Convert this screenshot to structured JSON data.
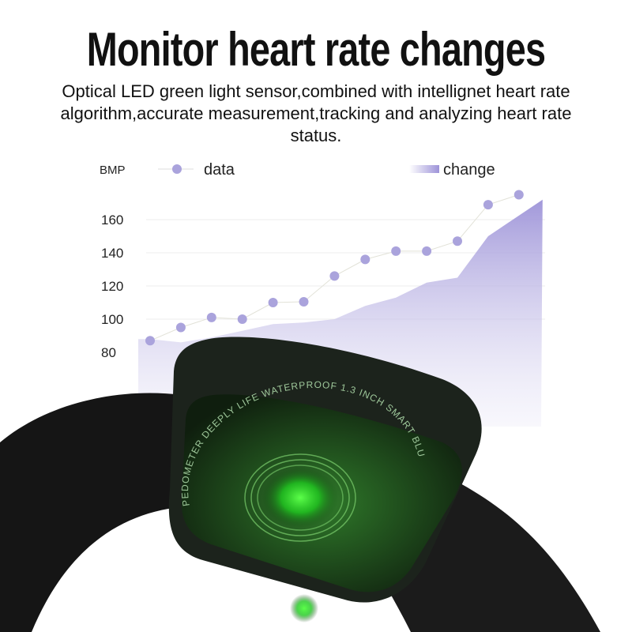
{
  "headline": "Monitor heart rate changes",
  "description": "Optical LED green light sensor,combined with intellignet heart rate algorithm,accurate measurement,tracking and analyzing heart rate status.",
  "chart_data": {
    "type": "line",
    "ylabel": "BMP",
    "legend": [
      {
        "name": "data",
        "style": "line-with-dots"
      },
      {
        "name": "change",
        "style": "area"
      }
    ],
    "yticks": [
      "160",
      "140",
      "120",
      "100",
      "80"
    ],
    "ylim": [
      75,
      180
    ],
    "series": [
      {
        "name": "data",
        "values": [
          87,
          95,
          101,
          100,
          110,
          110.5,
          126,
          136,
          141,
          141,
          147,
          169,
          175
        ]
      },
      {
        "name": "change",
        "values": [
          88,
          86,
          89,
          93,
          97,
          98,
          100,
          108,
          113,
          122,
          125,
          150,
          172
        ]
      }
    ],
    "colors": {
      "dots": "#aaa3dc",
      "area": "#9d93d8"
    },
    "grid": true
  },
  "watch_engraving": "PEDOMETER DEEPLY LIFE WATERPROOF 1.3 INCH SMART BLUETOOTH WATCH ACCURATE",
  "colors": {
    "sensor_green": "#3cff3c",
    "body": "#1a1f1a"
  }
}
